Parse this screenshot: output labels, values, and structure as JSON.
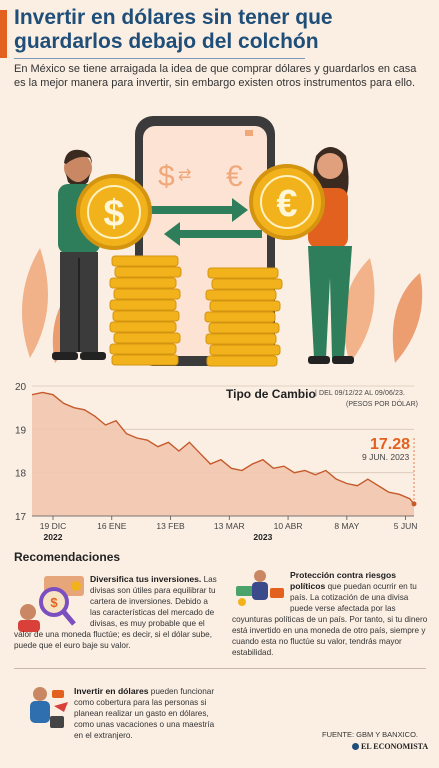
{
  "title": "Invertir en dólares sin tener que guardarlos debajo del colchón",
  "intro": "En México se tiene arraigada la idea de que comprar dólares y guardarlos en casa es la mejor manera para invertir, sin embargo existen otros instrumentos para ello.",
  "colors": {
    "accent": "#e2611f",
    "title_blue": "#1f4e79",
    "line": "#c55a2b",
    "area": "#f2c7ae",
    "background": "#fbefe4",
    "green": "#2e7d5b",
    "gold": "#f2b21c"
  },
  "hero": {
    "phone_symbols": "$ ⇄ €",
    "dollar_glyph": "$",
    "euro_glyph": "€"
  },
  "chart_header": {
    "title": "Tipo de Cambio",
    "subtitle": "| DEL 09/12/22 AL 09/06/23.",
    "unit": "(PESOS POR DÓLAR)",
    "last_value": "17.28",
    "last_date": "9 JUN. 2023"
  },
  "chart_data": {
    "type": "area",
    "title": "Tipo de Cambio",
    "ylabel": "(PESOS POR DÓLAR)",
    "ylim": [
      17,
      20
    ],
    "yticks": [
      "20",
      "19",
      "18",
      "17"
    ],
    "xticks": [
      {
        "label": "19 DIC",
        "day": 10
      },
      {
        "label": "16 ENE",
        "day": 38
      },
      {
        "label": "13 FEB",
        "day": 66
      },
      {
        "label": "13 MAR",
        "day": 94
      },
      {
        "label": "10 ABR",
        "day": 122
      },
      {
        "label": "8 MAY",
        "day": 150
      },
      {
        "label": "5 JUN",
        "day": 178
      }
    ],
    "year_labels": [
      {
        "label": "2022",
        "day": 10
      },
      {
        "label": "2023",
        "day": 110
      }
    ],
    "x": [
      0,
      5,
      10,
      15,
      20,
      25,
      30,
      35,
      40,
      45,
      50,
      55,
      60,
      65,
      70,
      75,
      80,
      85,
      90,
      95,
      100,
      105,
      110,
      115,
      120,
      125,
      130,
      135,
      140,
      145,
      150,
      155,
      160,
      165,
      170,
      175,
      180,
      182
    ],
    "y": [
      19.8,
      19.85,
      19.8,
      19.6,
      19.5,
      19.45,
      19.3,
      19.1,
      19.2,
      18.9,
      18.8,
      18.75,
      18.6,
      18.7,
      18.5,
      18.7,
      18.45,
      18.2,
      18.3,
      18.1,
      18.05,
      18.2,
      18.3,
      18.1,
      18.15,
      18.0,
      18.05,
      17.95,
      18.05,
      17.85,
      17.75,
      17.7,
      17.85,
      17.7,
      17.55,
      17.5,
      17.4,
      17.28
    ]
  },
  "recommendations": {
    "heading": "Recomendaciones",
    "item1": {
      "lead": "Diversifica tus inversiones.",
      "body": " Las divisas son útiles para equilibrar tu cartera de inversiones. Debido a las características del mercado de divisas, es muy probable que el valor de una moneda fluctúe; es decir, si el dólar sube, puede que el euro baje su valor."
    },
    "item2": {
      "lead": "Protección contra riesgos políticos",
      "body": " que puedan ocurrir en tu país. La cotización de una divisa puede verse afectada por las coyunturas políticas de un país. Por tanto, si tu dinero está invertido en una moneda de otro país, siempre y cuando esta no fluctúe su valor, tendrás mayor estabilidad."
    },
    "item3": {
      "lead": "Invertir en dólares",
      "body": " pueden funcionar como cobertura para las personas si planean realizar un gasto en dólares, como unas vacaciones o una maestría en el extranjero."
    }
  },
  "source": "FUENTE: GBM Y BANXICO.",
  "brand": "EL ECONOMISTA"
}
